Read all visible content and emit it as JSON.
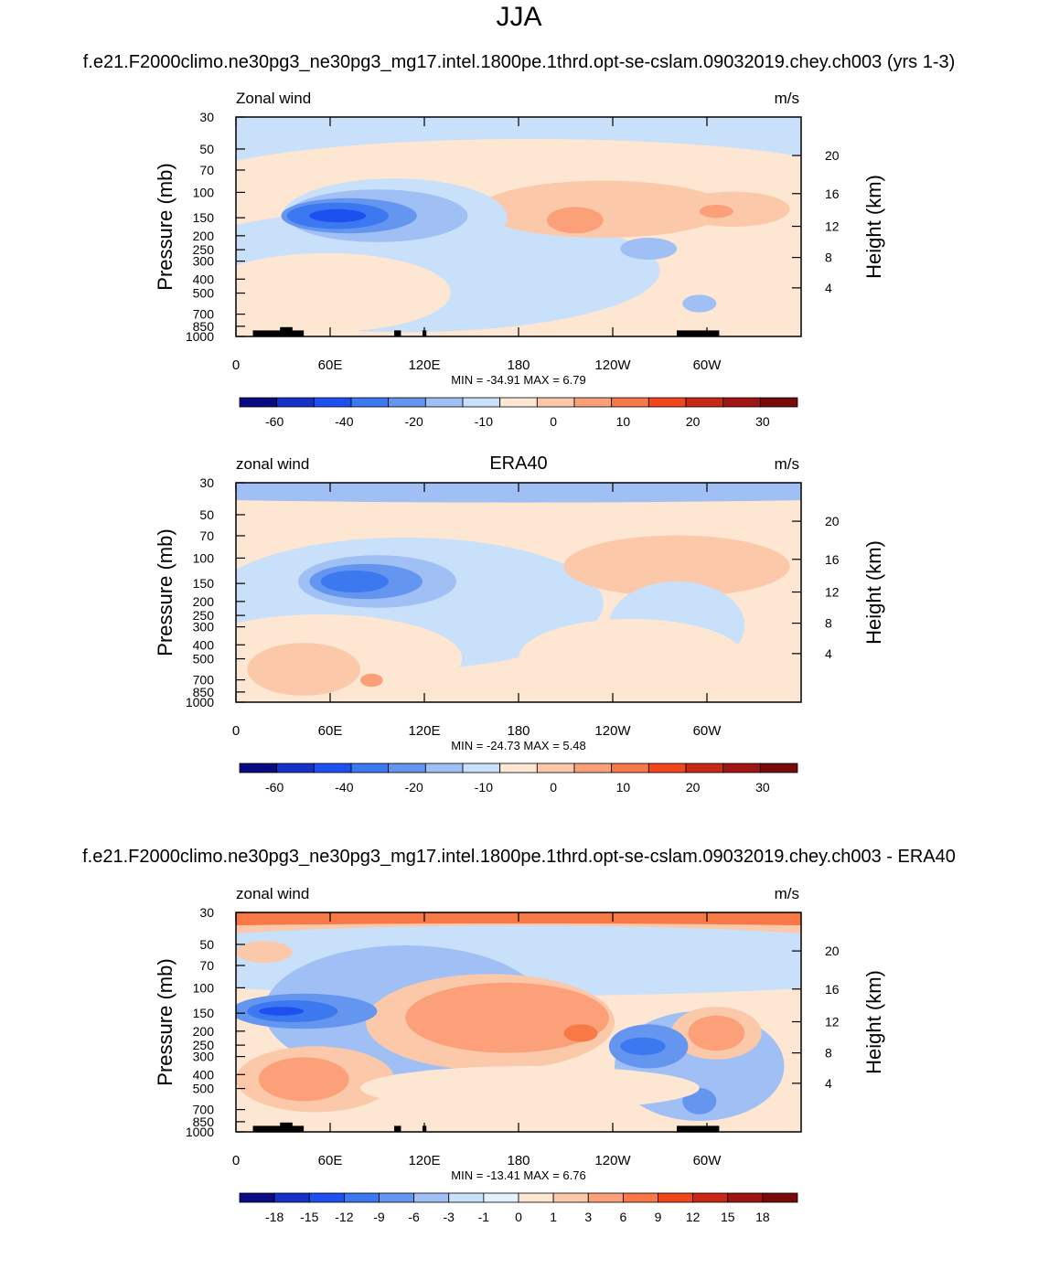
{
  "figure": {
    "season": "JJA",
    "model_label": "f.e21.F2000climo.ne30pg3_ne30pg3_mg17.intel.1800pe.1thrd.opt-se-cslam.09032019.chey.ch003 (yrs 1-3)",
    "diff_label": "f.e21.F2000climo.ne30pg3_ne30pg3_mg17.intel.1800pe.1thrd.opt-se-cslam.09032019.chey.ch003 - ERA40"
  },
  "chart_data": [
    {
      "type": "heatmap",
      "panel_title": "",
      "variable": "Zonal wind",
      "units": "m/s",
      "ylabel_left": "Pressure (mb)",
      "ylabel_right": "Height (km)",
      "x_ticks": [
        "0",
        "60E",
        "120E",
        "180",
        "120W",
        "60W"
      ],
      "y_ticks_pressure": [
        "30",
        "50",
        "70",
        "100",
        "150",
        "200",
        "250",
        "300",
        "400",
        "500",
        "700",
        "850",
        "1000"
      ],
      "y_ticks_height": [
        "20",
        "16",
        "12",
        "8",
        "4"
      ],
      "stats": "MIN = -34.91  MAX =   6.79",
      "colorbar_labels": [
        "-60",
        "-40",
        "-20",
        "-10",
        "0",
        "10",
        "20",
        "30"
      ],
      "colorbar_colors": [
        "#0a0a82",
        "#1432c8",
        "#1e50f0",
        "#3c78f0",
        "#6496f0",
        "#a0c0f5",
        "#c8e0fa",
        "#fde6d2",
        "#fcc8aa",
        "#fba078",
        "#f87846",
        "#f04619",
        "#c82814",
        "#a01414",
        "#780a0a"
      ],
      "min": -34.91,
      "max": 6.79
    },
    {
      "type": "heatmap",
      "panel_title": "ERA40",
      "variable": "zonal wind",
      "units": "m/s",
      "ylabel_left": "Pressure (mb)",
      "ylabel_right": "Height (km)",
      "x_ticks": [
        "0",
        "60E",
        "120E",
        "180",
        "120W",
        "60W"
      ],
      "y_ticks_pressure": [
        "30",
        "50",
        "70",
        "100",
        "150",
        "200",
        "250",
        "300",
        "400",
        "500",
        "700",
        "850",
        "1000"
      ],
      "y_ticks_height": [
        "20",
        "16",
        "12",
        "8",
        "4"
      ],
      "stats": "MIN = -24.73  MAX =   5.48",
      "colorbar_labels": [
        "-60",
        "-40",
        "-20",
        "-10",
        "0",
        "10",
        "20",
        "30"
      ],
      "colorbar_colors": [
        "#0a0a82",
        "#1432c8",
        "#1e50f0",
        "#3c78f0",
        "#6496f0",
        "#a0c0f5",
        "#c8e0fa",
        "#fde6d2",
        "#fcc8aa",
        "#fba078",
        "#f87846",
        "#f04619",
        "#c82814",
        "#a01414",
        "#780a0a"
      ],
      "min": -24.73,
      "max": 5.48
    },
    {
      "type": "heatmap",
      "panel_title": "",
      "variable": "zonal wind",
      "units": "m/s",
      "ylabel_left": "Pressure (mb)",
      "ylabel_right": "Height (km)",
      "x_ticks": [
        "0",
        "60E",
        "120E",
        "180",
        "120W",
        "60W"
      ],
      "y_ticks_pressure": [
        "30",
        "50",
        "70",
        "100",
        "150",
        "200",
        "250",
        "300",
        "400",
        "500",
        "700",
        "850",
        "1000"
      ],
      "y_ticks_height": [
        "20",
        "16",
        "12",
        "8",
        "4"
      ],
      "stats": "MIN = -13.41  MAX =   6.76",
      "colorbar_labels": [
        "-18",
        "-15",
        "-12",
        "-9",
        "-6",
        "-3",
        "-1",
        "0",
        "1",
        "3",
        "6",
        "9",
        "12",
        "15",
        "18"
      ],
      "colorbar_colors": [
        "#0a0a82",
        "#1432c8",
        "#1e50f0",
        "#3c78f0",
        "#6496f0",
        "#a0c0f5",
        "#c8e0fa",
        "#e6f0fc",
        "#fde6d2",
        "#fcc8aa",
        "#fba078",
        "#f87846",
        "#f04619",
        "#c82814",
        "#a01414",
        "#780a0a"
      ],
      "min": -13.41,
      "max": 6.76
    }
  ]
}
